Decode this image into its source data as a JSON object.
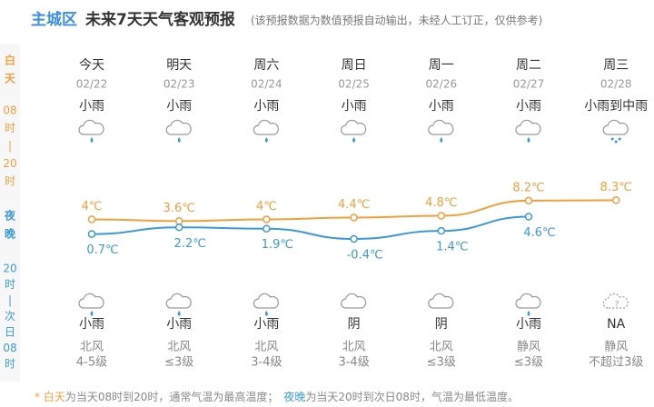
{
  "header": {
    "location": "主城区",
    "title": "未来7天天气客观预报",
    "note": "(该预报数据为数值预报自动输出，未经人工订正，仅供参考)"
  },
  "side": {
    "day_label": [
      "白",
      "天"
    ],
    "day_hours": [
      "08",
      "时",
      "|",
      "20",
      "时"
    ],
    "night_label": [
      "夜",
      "晚"
    ],
    "night_hours": [
      "20",
      "时",
      "|",
      "次",
      "日",
      "08",
      "时"
    ]
  },
  "days": [
    {
      "name": "今天",
      "date": "02/22",
      "day_weather": "小雨",
      "night_weather": "小雨",
      "wind_dir": "北风",
      "wind_level": "4-5级"
    },
    {
      "name": "明天",
      "date": "02/23",
      "day_weather": "小雨",
      "night_weather": "小雨",
      "wind_dir": "北风",
      "wind_level": "≤3级"
    },
    {
      "name": "周六",
      "date": "02/24",
      "day_weather": "小雨",
      "night_weather": "小雨",
      "wind_dir": "北风",
      "wind_level": "3-4级"
    },
    {
      "name": "周日",
      "date": "02/25",
      "day_weather": "小雨",
      "night_weather": "阴",
      "wind_dir": "北风",
      "wind_level": "3-4级"
    },
    {
      "name": "周一",
      "date": "02/26",
      "day_weather": "小雨",
      "night_weather": "阴",
      "wind_dir": "北风",
      "wind_level": "≤3级"
    },
    {
      "name": "周二",
      "date": "02/27",
      "day_weather": "小雨",
      "night_weather": "小雨",
      "wind_dir": "静风",
      "wind_level": "≤3级"
    },
    {
      "name": "周三",
      "date": "02/28",
      "day_weather": "小雨到中雨",
      "night_weather": "NA",
      "wind_dir": "静风",
      "wind_level": "不超过3级"
    }
  ],
  "temperature": {
    "high": {
      "color": "#f0a03c",
      "values": [
        4,
        3.6,
        4,
        4.4,
        4.8,
        8.2,
        8.3
      ],
      "value_labels": [
        "4℃",
        "3.6℃",
        "4℃",
        "4.4℃",
        "4.8℃",
        "8.2℃",
        "8.3℃"
      ]
    },
    "low": {
      "color": "#3a9ad9",
      "values": [
        0.7,
        2.2,
        1.9,
        -0.4,
        1.4,
        4.6,
        null
      ],
      "value_labels": [
        "0.7℃",
        "2.2℃",
        "1.9℃",
        "-0.4℃",
        "1.4℃",
        "4.6℃",
        null
      ]
    }
  },
  "footer": {
    "star": "* ",
    "day_term": "白天",
    "day_text": "为当天08时到20时，通常气温为最高温度；",
    "night_term": "夜晚",
    "night_text": "为当天20时到次日08时，气温为最低温度。"
  }
}
